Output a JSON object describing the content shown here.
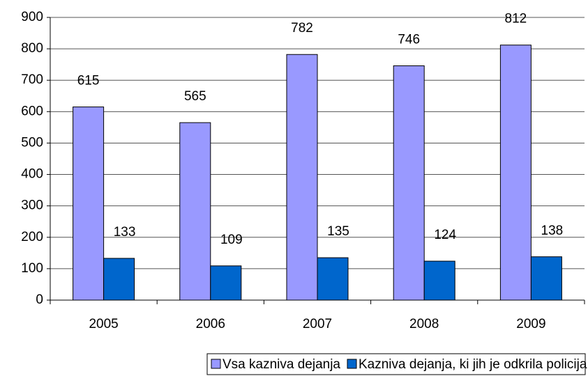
{
  "chart_data": {
    "type": "bar",
    "categories": [
      "2005",
      "2006",
      "2007",
      "2008",
      "2009"
    ],
    "series": [
      {
        "name": "Vsa kazniva dejanja",
        "color": "#9999ff",
        "values": [
          615,
          565,
          782,
          746,
          812
        ]
      },
      {
        "name": "Kazniva dejanja, ki jih je odkrila policija",
        "color": "#0066cc",
        "values": [
          133,
          109,
          135,
          124,
          138
        ]
      }
    ],
    "ylim": [
      0,
      900
    ],
    "yticks": [
      0,
      100,
      200,
      300,
      400,
      500,
      600,
      700,
      800,
      900
    ],
    "grid": true,
    "legend": "bottom"
  }
}
